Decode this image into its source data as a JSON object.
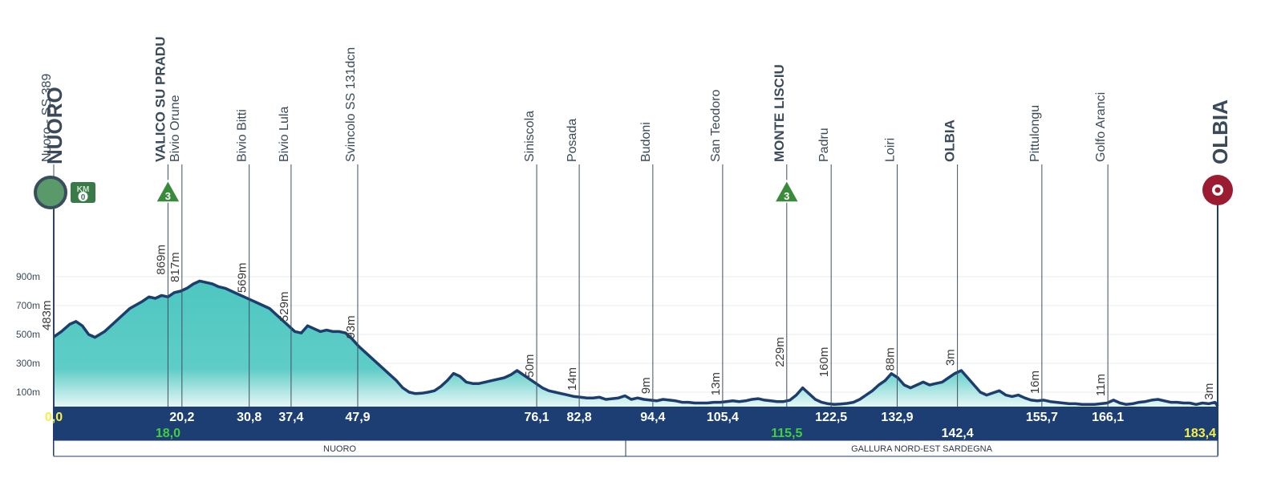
{
  "chart_data": {
    "type": "area",
    "start": {
      "name": "NUORO",
      "km": 0.0
    },
    "finish": {
      "name": "OLBIA",
      "km": 183.4
    },
    "xlim": [
      0,
      183.4
    ],
    "ylim": [
      0,
      1000
    ],
    "y_ticks": [
      "100m",
      "300m",
      "500m",
      "700m",
      "900m"
    ],
    "y_tick_values": [
      100,
      300,
      500,
      700,
      900
    ],
    "colors": {
      "fill_top": "#4ec6c0",
      "fill_bottom": "#e6f7f6",
      "line": "#1d3d6e",
      "band": "#1c3e73",
      "km_white": "#ffffff",
      "km_yellow": "#f6ee4a",
      "km_green": "#3fcf3f",
      "climb_badge": "#3a8a3c",
      "start_marker": "#5a9a6a",
      "finish_marker": "#9b1c30",
      "label_text": "#3a4a5a"
    },
    "waypoints": [
      {
        "name": "Nuoro - SS 389",
        "km": 0.0,
        "km_label": "0,0",
        "alt": 483,
        "alt_label": "483m",
        "bold": false,
        "km_color": "yellow"
      },
      {
        "name": "VALICO SU PRADU",
        "km": 18.0,
        "km_label": "18,0",
        "alt": 869,
        "alt_label": "869m",
        "bold": true,
        "km_color": "green",
        "km_row": 2,
        "climb": "3"
      },
      {
        "name": "Bivio Orune",
        "km": 20.2,
        "km_label": "20,2",
        "alt": 817,
        "alt_label": "817m",
        "bold": false,
        "km_color": "white"
      },
      {
        "name": "Bivio Bitti",
        "km": 30.8,
        "km_label": "30,8",
        "alt": 569,
        "alt_label": "569m",
        "bold": false,
        "km_color": "white"
      },
      {
        "name": "Bivio Lula",
        "km": 37.4,
        "km_label": "37,4",
        "alt": 529,
        "alt_label": "529m",
        "bold": false,
        "km_color": "white"
      },
      {
        "name": "Svincolo SS 131dcn",
        "km": 47.9,
        "km_label": "47,9",
        "alt": 93,
        "alt_label": "93m",
        "bold": false,
        "km_color": "white"
      },
      {
        "name": "Siniscola",
        "km": 76.1,
        "km_label": "76,1",
        "alt": 50,
        "alt_label": "50m",
        "bold": false,
        "km_color": "white"
      },
      {
        "name": "Posada",
        "km": 82.8,
        "km_label": "82,8",
        "alt": 14,
        "alt_label": "14m",
        "bold": false,
        "km_color": "white"
      },
      {
        "name": "Budoni",
        "km": 94.4,
        "km_label": "94,4",
        "alt": 9,
        "alt_label": "9m",
        "bold": false,
        "km_color": "white"
      },
      {
        "name": "San Teodoro",
        "km": 105.4,
        "km_label": "105,4",
        "alt": 13,
        "alt_label": "13m",
        "bold": false,
        "km_color": "white"
      },
      {
        "name": "MONTE LISCIU",
        "km": 115.5,
        "km_label": "115,5",
        "alt": 229,
        "alt_label": "229m",
        "bold": true,
        "km_color": "green",
        "km_row": 2,
        "climb": "3"
      },
      {
        "name": "Padru",
        "km": 122.5,
        "km_label": "122,5",
        "alt": 160,
        "alt_label": "160m",
        "bold": false,
        "km_color": "white"
      },
      {
        "name": "Loiri",
        "km": 132.9,
        "km_label": "132,9",
        "alt": 88,
        "alt_label": "88m",
        "bold": false,
        "km_color": "white"
      },
      {
        "name": "OLBIA",
        "km": 142.4,
        "km_label": "142,4",
        "alt": 3,
        "alt_label": "3m",
        "bold": true,
        "km_color": "white",
        "km_row": 2
      },
      {
        "name": "Pittulongu",
        "km": 155.7,
        "km_label": "155,7",
        "alt": 16,
        "alt_label": "16m",
        "bold": false,
        "km_color": "white"
      },
      {
        "name": "Golfo Aranci",
        "km": 166.1,
        "km_label": "166,1",
        "alt": 11,
        "alt_label": "11m",
        "bold": false,
        "km_color": "white"
      },
      {
        "name": "OLBIA",
        "km": 183.4,
        "km_label": "183,4",
        "alt": 3,
        "alt_label": "3m",
        "bold": true,
        "km_color": "yellow",
        "km_row": 2,
        "finish": true
      }
    ],
    "profile": [
      [
        0,
        483
      ],
      [
        1.2,
        520
      ],
      [
        2.5,
        570
      ],
      [
        3.5,
        590
      ],
      [
        4.5,
        560
      ],
      [
        5.5,
        500
      ],
      [
        6.5,
        480
      ],
      [
        8,
        520
      ],
      [
        10,
        600
      ],
      [
        12,
        680
      ],
      [
        14,
        730
      ],
      [
        15,
        760
      ],
      [
        16,
        750
      ],
      [
        17,
        770
      ],
      [
        18,
        760
      ],
      [
        19,
        790
      ],
      [
        20,
        800
      ],
      [
        21,
        820
      ],
      [
        22,
        850
      ],
      [
        23,
        870
      ],
      [
        24,
        860
      ],
      [
        25,
        850
      ],
      [
        26,
        830
      ],
      [
        27,
        820
      ],
      [
        28,
        800
      ],
      [
        29,
        780
      ],
      [
        30,
        760
      ],
      [
        31,
        740
      ],
      [
        32,
        720
      ],
      [
        33,
        700
      ],
      [
        34,
        680
      ],
      [
        35,
        640
      ],
      [
        36,
        600
      ],
      [
        37,
        560
      ],
      [
        38,
        520
      ],
      [
        39,
        510
      ],
      [
        40,
        560
      ],
      [
        41,
        540
      ],
      [
        42,
        520
      ],
      [
        43,
        530
      ],
      [
        44,
        520
      ],
      [
        45,
        520
      ],
      [
        46,
        510
      ],
      [
        47,
        470
      ],
      [
        48,
        420
      ],
      [
        50,
        340
      ],
      [
        52,
        260
      ],
      [
        54,
        180
      ],
      [
        55,
        130
      ],
      [
        56,
        100
      ],
      [
        57,
        90
      ],
      [
        58,
        93
      ],
      [
        59,
        100
      ],
      [
        60,
        110
      ],
      [
        61,
        140
      ],
      [
        62,
        180
      ],
      [
        63,
        230
      ],
      [
        64,
        210
      ],
      [
        65,
        170
      ],
      [
        66,
        160
      ],
      [
        67,
        160
      ],
      [
        68,
        170
      ],
      [
        69,
        180
      ],
      [
        70,
        190
      ],
      [
        71,
        200
      ],
      [
        72,
        220
      ],
      [
        73,
        250
      ],
      [
        74,
        220
      ],
      [
        75,
        190
      ],
      [
        76,
        160
      ],
      [
        77,
        130
      ],
      [
        78,
        110
      ],
      [
        79,
        100
      ],
      [
        80,
        90
      ],
      [
        81,
        80
      ],
      [
        82,
        70
      ],
      [
        83,
        65
      ],
      [
        84,
        60
      ],
      [
        85,
        60
      ],
      [
        86,
        65
      ],
      [
        87,
        50
      ],
      [
        88,
        55
      ],
      [
        89,
        60
      ],
      [
        90,
        75
      ],
      [
        91,
        50
      ],
      [
        92,
        60
      ],
      [
        93,
        50
      ],
      [
        94,
        45
      ],
      [
        95,
        40
      ],
      [
        96,
        50
      ],
      [
        97,
        45
      ],
      [
        98,
        40
      ],
      [
        99,
        30
      ],
      [
        100,
        30
      ],
      [
        101,
        25
      ],
      [
        102,
        25
      ],
      [
        103,
        25
      ],
      [
        104,
        30
      ],
      [
        105,
        30
      ],
      [
        106,
        35
      ],
      [
        107,
        40
      ],
      [
        108,
        35
      ],
      [
        109,
        40
      ],
      [
        110,
        50
      ],
      [
        111,
        55
      ],
      [
        112,
        45
      ],
      [
        113,
        40
      ],
      [
        114,
        35
      ],
      [
        115,
        35
      ],
      [
        116,
        45
      ],
      [
        117,
        80
      ],
      [
        118,
        130
      ],
      [
        119,
        90
      ],
      [
        120,
        50
      ],
      [
        121,
        30
      ],
      [
        122,
        20
      ],
      [
        123,
        15
      ],
      [
        124,
        18
      ],
      [
        125,
        22
      ],
      [
        126,
        30
      ],
      [
        127,
        50
      ],
      [
        128,
        80
      ],
      [
        129,
        110
      ],
      [
        130,
        150
      ],
      [
        131,
        180
      ],
      [
        132,
        229
      ],
      [
        133,
        200
      ],
      [
        134,
        150
      ],
      [
        135,
        130
      ],
      [
        136,
        150
      ],
      [
        137,
        170
      ],
      [
        138,
        150
      ],
      [
        139,
        160
      ],
      [
        140,
        170
      ],
      [
        141,
        200
      ],
      [
        142,
        230
      ],
      [
        143,
        250
      ],
      [
        144,
        200
      ],
      [
        145,
        150
      ],
      [
        146,
        100
      ],
      [
        147,
        80
      ],
      [
        148,
        95
      ],
      [
        149,
        110
      ],
      [
        150,
        80
      ],
      [
        151,
        70
      ],
      [
        152,
        80
      ],
      [
        153,
        60
      ],
      [
        154,
        45
      ],
      [
        155,
        40
      ],
      [
        156,
        45
      ],
      [
        157,
        35
      ],
      [
        158,
        30
      ],
      [
        159,
        25
      ],
      [
        160,
        20
      ],
      [
        161,
        20
      ],
      [
        162,
        15
      ],
      [
        163,
        15
      ],
      [
        164,
        15
      ],
      [
        165,
        20
      ],
      [
        166,
        25
      ],
      [
        167,
        45
      ],
      [
        168,
        25
      ],
      [
        169,
        15
      ],
      [
        170,
        20
      ],
      [
        171,
        30
      ],
      [
        172,
        35
      ],
      [
        173,
        45
      ],
      [
        174,
        50
      ],
      [
        175,
        40
      ],
      [
        176,
        30
      ],
      [
        177,
        30
      ],
      [
        178,
        25
      ],
      [
        179,
        25
      ],
      [
        180,
        15
      ],
      [
        181,
        25
      ],
      [
        182,
        20
      ],
      [
        183,
        30
      ],
      [
        183.4,
        3
      ]
    ],
    "regions": [
      "NUORO",
      "GALLURA NORD-EST SARDEGNA"
    ]
  },
  "meta_labels": {
    "start_marker_km": "KM",
    "start_marker_zero": "0"
  }
}
